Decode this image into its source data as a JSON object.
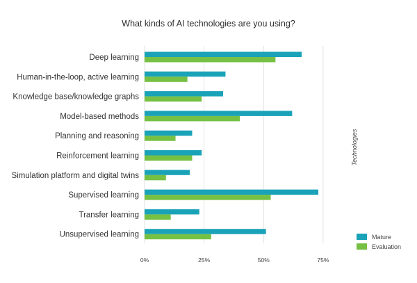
{
  "chart_data": {
    "type": "bar",
    "orientation": "horizontal",
    "title": "What kinds of AI technologies are you using?",
    "xlabel": "",
    "ylabel": "Technologies",
    "xlim": [
      0,
      0.8
    ],
    "x_ticks": [
      "0%",
      "25%",
      "50%",
      "75%"
    ],
    "x_tick_values": [
      0,
      0.25,
      0.5,
      0.75
    ],
    "grid": true,
    "legend_position": "bottom-right",
    "categories": [
      "Deep learning",
      "Human-in-the-loop, active learning",
      "Knowledge base/knowledge graphs",
      "Model-based methods",
      "Planning and reasoning",
      "Reinforcement learning",
      "Simulation platform and digital twins",
      "Supervised learning",
      "Transfer learning",
      "Unsupervised learning"
    ],
    "series": [
      {
        "name": "Mature",
        "color": "#1aa3b8",
        "values": [
          0.66,
          0.34,
          0.33,
          0.62,
          0.2,
          0.24,
          0.19,
          0.73,
          0.23,
          0.51
        ]
      },
      {
        "name": "Evaluation",
        "color": "#76c043",
        "values": [
          0.55,
          0.18,
          0.24,
          0.4,
          0.13,
          0.2,
          0.09,
          0.53,
          0.11,
          0.28
        ]
      }
    ]
  }
}
